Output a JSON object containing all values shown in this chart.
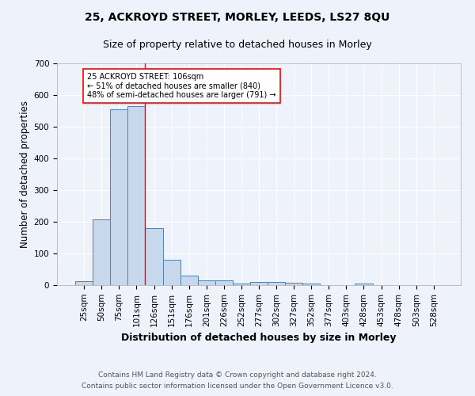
{
  "title": "25, ACKROYD STREET, MORLEY, LEEDS, LS27 8QU",
  "subtitle": "Size of property relative to detached houses in Morley",
  "xlabel": "Distribution of detached houses by size in Morley",
  "ylabel": "Number of detached properties",
  "footnote1": "Contains HM Land Registry data © Crown copyright and database right 2024.",
  "footnote2": "Contains public sector information licensed under the Open Government Licence v3.0.",
  "bar_labels": [
    "25sqm",
    "50sqm",
    "75sqm",
    "101sqm",
    "126sqm",
    "151sqm",
    "176sqm",
    "201sqm",
    "226sqm",
    "252sqm",
    "277sqm",
    "302sqm",
    "327sqm",
    "352sqm",
    "377sqm",
    "403sqm",
    "428sqm",
    "453sqm",
    "478sqm",
    "503sqm",
    "528sqm"
  ],
  "bar_values": [
    12,
    207,
    555,
    565,
    180,
    80,
    30,
    14,
    14,
    6,
    10,
    10,
    7,
    4,
    0,
    0,
    5,
    0,
    0,
    0,
    0
  ],
  "bar_color": "#c8d8ec",
  "bar_edge_color": "#5080b0",
  "vline_x": 3.5,
  "vline_color": "red",
  "annotation_text": "25 ACKROYD STREET: 106sqm\n← 51% of detached houses are smaller (840)\n48% of semi-detached houses are larger (791) →",
  "ylim": [
    0,
    700
  ],
  "yticks": [
    0,
    100,
    200,
    300,
    400,
    500,
    600,
    700
  ],
  "background_color": "#eef2fb",
  "grid_color": "#ffffff",
  "title_fontsize": 10,
  "subtitle_fontsize": 9,
  "axis_label_fontsize": 8.5,
  "tick_fontsize": 7.5,
  "footnote_fontsize": 6.5
}
